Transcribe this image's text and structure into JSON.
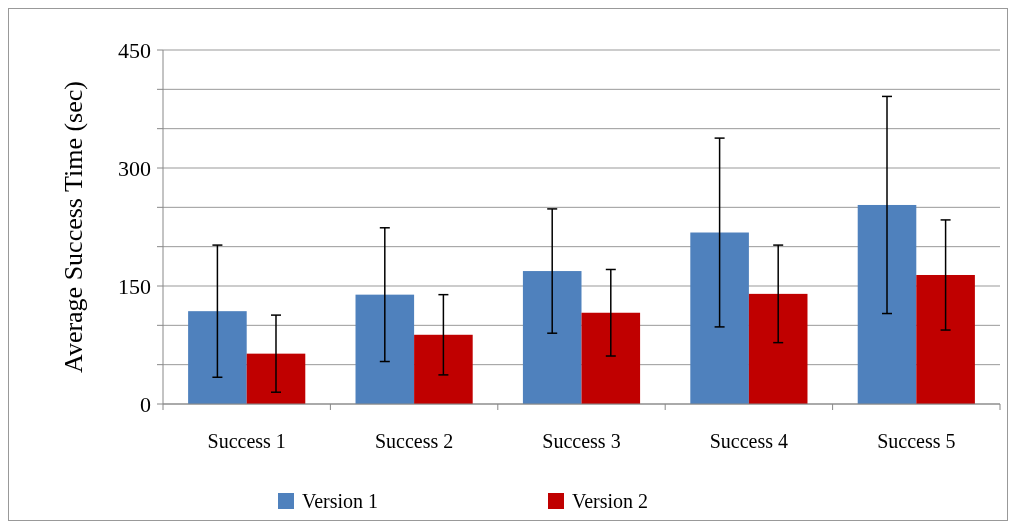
{
  "chart_data": {
    "type": "bar",
    "ylabel": "Average Success Time (sec)",
    "categories": [
      "Success 1",
      "Success 2",
      "Success 3",
      "Success 4",
      "Success 5"
    ],
    "series": [
      {
        "name": "Version 1",
        "color": "#4f81bd",
        "values": [
          118,
          139,
          169,
          218,
          253
        ],
        "errors": [
          84,
          85,
          79,
          120,
          138
        ]
      },
      {
        "name": "Version 2",
        "color": "#c00000",
        "values": [
          64,
          88,
          116,
          140,
          164
        ],
        "errors": [
          49,
          51,
          55,
          62,
          70
        ]
      }
    ],
    "ylim": [
      0,
      450
    ],
    "yticks": [
      0,
      {
        "value": 50,
        "label": null
      },
      {
        "value": 100,
        "label": null
      },
      150,
      {
        "value": 200,
        "label": null
      },
      {
        "value": 250,
        "label": null
      },
      300,
      {
        "value": 350,
        "label": null
      },
      {
        "value": 400,
        "label": null
      },
      450
    ],
    "grid": "y",
    "legend": "bottom"
  }
}
